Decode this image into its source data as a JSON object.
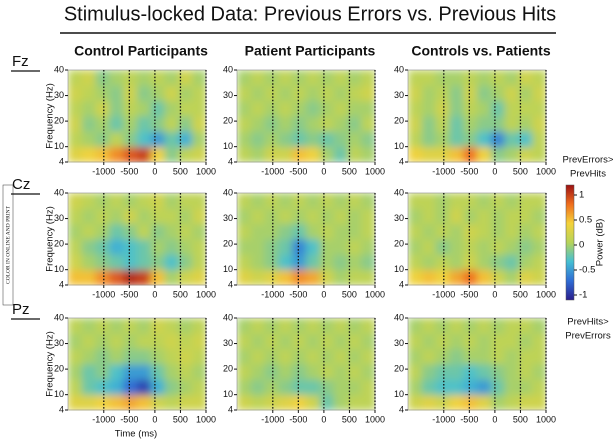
{
  "title": "Stimulus-locked Data: Previous Errors vs. Previous Hits",
  "side_note": "COLOR IN ONLINE AND PRINT",
  "column_titles": [
    "Control Participants",
    "Patient Participants",
    "Controls vs. Patients"
  ],
  "row_labels": [
    "Fz",
    "Cz",
    "Pz"
  ],
  "x_label": "Time (ms)",
  "y_label": "Frequency (Hz)",
  "colorbar": {
    "label": "Power (dB)",
    "top_label": [
      "PrevErrors>",
      "PrevHits"
    ],
    "bottom_label": [
      "PrevHits>",
      "PrevErrors"
    ],
    "lim": [
      -1.1,
      1.2
    ],
    "ticks": [
      1,
      0.5,
      0,
      -0.5,
      -1
    ],
    "colormap": [
      "#2a1e8c",
      "#2f6cd4",
      "#45bfd3",
      "#b6d35a",
      "#f4d23a",
      "#ef6d1d",
      "#9c1113"
    ]
  },
  "chart_data": [
    {
      "type": "heatmap",
      "xlim": [
        -1700,
        1000
      ],
      "ylim": [
        4,
        40
      ],
      "xticks": [
        -1000,
        -500,
        0,
        500,
        1000
      ],
      "yticks": [
        4,
        10,
        20,
        30,
        40
      ],
      "z": [
        [
          0.3,
          0.4,
          0.5,
          0.7,
          0.9,
          1.0,
          0.4,
          -0.1,
          0.1,
          0.2
        ],
        [
          0.1,
          0.0,
          -0.1,
          0.1,
          -0.1,
          -0.3,
          -0.5,
          -0.2,
          -0.4,
          0.0
        ],
        [
          0.2,
          -0.1,
          0.0,
          -0.2,
          0.0,
          -0.2,
          -0.1,
          0.1,
          -0.1,
          0.2
        ],
        [
          0.1,
          0.0,
          0.2,
          -0.1,
          0.1,
          0.0,
          -0.2,
          0.0,
          0.1,
          0.1
        ],
        [
          0.2,
          0.1,
          0.0,
          -0.1,
          0.2,
          -0.1,
          0.0,
          0.2,
          0.0,
          0.1
        ],
        [
          0.1,
          0.2,
          -0.1,
          0.0,
          0.1,
          0.0,
          0.1,
          0.0,
          0.2,
          0.0
        ]
      ]
    },
    {
      "type": "heatmap",
      "xlim": [
        -1700,
        1000
      ],
      "ylim": [
        4,
        40
      ],
      "xticks": [
        -1000,
        -500,
        0,
        500,
        1000
      ],
      "yticks": [
        4,
        10,
        20,
        30,
        40
      ],
      "z": [
        [
          0.1,
          0.0,
          0.2,
          0.2,
          0.5,
          0.4,
          0.0,
          -0.2,
          0.1,
          0.0
        ],
        [
          0.0,
          -0.1,
          0.0,
          -0.1,
          -0.2,
          -0.1,
          -0.2,
          -0.1,
          0.0,
          -0.1
        ],
        [
          0.1,
          0.0,
          -0.1,
          0.0,
          -0.1,
          0.0,
          0.1,
          0.0,
          -0.1,
          0.1
        ],
        [
          0.0,
          0.1,
          0.0,
          0.1,
          0.0,
          -0.1,
          0.0,
          0.1,
          0.0,
          0.0
        ],
        [
          0.1,
          0.0,
          0.1,
          0.0,
          0.1,
          0.0,
          0.1,
          0.0,
          0.1,
          0.2
        ],
        [
          0.0,
          0.1,
          0.0,
          0.1,
          0.0,
          0.1,
          0.0,
          0.1,
          0.0,
          0.1
        ]
      ]
    },
    {
      "type": "heatmap",
      "xlim": [
        -1700,
        1000
      ],
      "ylim": [
        4,
        40
      ],
      "xticks": [
        -1000,
        -500,
        0,
        500,
        1000
      ],
      "yticks": [
        4,
        10,
        20,
        30,
        40
      ],
      "z": [
        [
          0.4,
          0.3,
          0.3,
          0.5,
          0.8,
          0.4,
          -0.1,
          0.0,
          0.2,
          0.1
        ],
        [
          0.1,
          -0.1,
          0.0,
          -0.2,
          -0.1,
          -0.3,
          -0.6,
          -0.2,
          -0.3,
          0.1
        ],
        [
          0.2,
          -0.1,
          0.1,
          -0.2,
          0.0,
          -0.1,
          -0.1,
          0.1,
          0.0,
          0.2
        ],
        [
          0.1,
          0.0,
          0.2,
          -0.1,
          0.1,
          0.0,
          -0.2,
          0.1,
          0.1,
          0.1
        ],
        [
          0.2,
          0.0,
          0.1,
          -0.1,
          0.2,
          -0.1,
          0.0,
          0.2,
          0.0,
          0.2
        ],
        [
          0.1,
          0.1,
          0.0,
          0.0,
          0.1,
          0.0,
          0.1,
          0.0,
          0.2,
          0.1
        ]
      ]
    },
    {
      "type": "heatmap",
      "xlim": [
        -1700,
        1000
      ],
      "ylim": [
        4,
        40
      ],
      "xticks": [
        -1000,
        -500,
        0,
        500,
        1000
      ],
      "yticks": [
        4,
        10,
        20,
        30,
        40
      ],
      "z": [
        [
          0.5,
          0.5,
          0.7,
          0.9,
          1.1,
          1.0,
          0.5,
          0.0,
          0.2,
          0.3
        ],
        [
          0.2,
          0.0,
          -0.1,
          -0.2,
          -0.3,
          -0.2,
          -0.1,
          -0.3,
          -0.1,
          0.1
        ],
        [
          0.1,
          -0.1,
          -0.2,
          -0.4,
          -0.3,
          -0.2,
          0.0,
          -0.1,
          0.0,
          0.1
        ],
        [
          0.0,
          0.1,
          0.0,
          -0.2,
          -0.1,
          0.1,
          -0.1,
          0.0,
          0.1,
          0.0
        ],
        [
          0.1,
          0.0,
          0.1,
          0.0,
          0.2,
          0.0,
          0.1,
          0.1,
          0.0,
          0.2
        ],
        [
          0.2,
          0.1,
          0.0,
          0.1,
          0.0,
          0.1,
          0.2,
          0.0,
          0.1,
          0.1
        ]
      ]
    },
    {
      "type": "heatmap",
      "xlim": [
        -1700,
        1000
      ],
      "ylim": [
        4,
        40
      ],
      "xticks": [
        -1000,
        -500,
        0,
        500,
        1000
      ],
      "yticks": [
        4,
        10,
        20,
        30,
        40
      ],
      "z": [
        [
          0.3,
          0.2,
          0.3,
          0.5,
          0.7,
          0.6,
          0.2,
          0.0,
          0.1,
          0.1
        ],
        [
          0.1,
          0.0,
          -0.1,
          -0.3,
          -0.5,
          -0.2,
          0.0,
          -0.1,
          0.0,
          -0.1
        ],
        [
          0.0,
          0.0,
          -0.1,
          -0.2,
          -0.6,
          -0.3,
          0.0,
          0.0,
          0.1,
          0.0
        ],
        [
          0.1,
          0.0,
          0.0,
          -0.1,
          -0.2,
          0.0,
          0.1,
          0.0,
          0.0,
          0.1
        ],
        [
          0.0,
          0.1,
          0.0,
          0.1,
          0.0,
          0.1,
          0.0,
          0.1,
          0.0,
          0.1
        ],
        [
          0.1,
          0.0,
          0.1,
          0.0,
          0.1,
          0.0,
          0.1,
          0.0,
          0.1,
          0.0
        ]
      ]
    },
    {
      "type": "heatmap",
      "xlim": [
        -1700,
        1000
      ],
      "ylim": [
        4,
        40
      ],
      "xticks": [
        -1000,
        -500,
        0,
        500,
        1000
      ],
      "yticks": [
        4,
        10,
        20,
        30,
        40
      ],
      "z": [
        [
          0.4,
          0.5,
          0.4,
          0.6,
          0.8,
          0.5,
          0.2,
          0.0,
          0.3,
          0.2
        ],
        [
          0.1,
          0.0,
          0.1,
          0.0,
          0.2,
          0.0,
          -0.1,
          -0.2,
          0.0,
          0.1
        ],
        [
          0.0,
          0.1,
          -0.1,
          0.0,
          0.1,
          0.0,
          0.1,
          0.0,
          -0.1,
          0.0
        ],
        [
          0.1,
          0.0,
          0.1,
          0.0,
          0.2,
          0.1,
          0.0,
          0.1,
          0.0,
          0.1
        ],
        [
          0.0,
          0.1,
          0.0,
          0.2,
          0.0,
          0.1,
          0.0,
          0.1,
          0.1,
          0.0
        ],
        [
          0.1,
          0.1,
          0.0,
          0.1,
          0.1,
          0.0,
          0.1,
          0.0,
          0.1,
          0.1
        ]
      ]
    },
    {
      "type": "heatmap",
      "xlim": [
        -1700,
        1000
      ],
      "ylim": [
        4,
        40
      ],
      "xticks": [
        -1000,
        -500,
        0,
        500,
        1000
      ],
      "yticks": [
        4,
        10,
        20,
        30,
        40
      ],
      "z": [
        [
          0.3,
          0.3,
          0.4,
          0.5,
          0.6,
          0.5,
          0.2,
          0.1,
          0.2,
          0.2
        ],
        [
          0.1,
          -0.2,
          -0.3,
          -0.4,
          -0.7,
          -0.9,
          -0.4,
          -0.1,
          0.0,
          0.1
        ],
        [
          0.0,
          -0.2,
          -0.1,
          -0.3,
          -0.5,
          -0.5,
          -0.2,
          0.0,
          0.1,
          0.0
        ],
        [
          0.1,
          0.0,
          -0.1,
          0.0,
          -0.1,
          -0.1,
          0.0,
          0.1,
          0.2,
          0.1
        ],
        [
          0.0,
          0.1,
          0.0,
          0.1,
          0.0,
          0.1,
          0.1,
          0.2,
          0.1,
          0.2
        ],
        [
          0.1,
          0.0,
          0.1,
          0.0,
          0.1,
          0.0,
          0.2,
          0.1,
          0.0,
          0.1
        ]
      ]
    },
    {
      "type": "heatmap",
      "xlim": [
        -1700,
        1000
      ],
      "ylim": [
        4,
        40
      ],
      "xticks": [
        -1000,
        -500,
        0,
        500,
        1000
      ],
      "yticks": [
        4,
        10,
        20,
        30,
        40
      ],
      "z": [
        [
          0.2,
          0.1,
          0.2,
          0.3,
          0.4,
          0.2,
          -0.2,
          0.0,
          0.1,
          0.1
        ],
        [
          0.0,
          -0.1,
          0.0,
          -0.1,
          -0.2,
          -0.2,
          -0.1,
          0.0,
          0.0,
          0.1
        ],
        [
          0.1,
          0.0,
          -0.1,
          0.0,
          -0.1,
          0.0,
          0.1,
          0.0,
          0.1,
          0.0
        ],
        [
          0.0,
          0.1,
          0.0,
          0.1,
          0.0,
          0.1,
          0.0,
          0.1,
          0.0,
          0.1
        ],
        [
          0.1,
          0.0,
          0.1,
          0.0,
          0.1,
          0.0,
          0.1,
          0.0,
          0.1,
          0.0
        ],
        [
          0.0,
          0.1,
          0.0,
          0.1,
          0.0,
          0.1,
          0.0,
          0.1,
          0.0,
          0.1
        ]
      ]
    },
    {
      "type": "heatmap",
      "xlim": [
        -1700,
        1000
      ],
      "ylim": [
        4,
        40
      ],
      "xticks": [
        -1000,
        -500,
        0,
        500,
        1000
      ],
      "yticks": [
        4,
        10,
        20,
        30,
        40
      ],
      "z": [
        [
          0.2,
          0.3,
          0.2,
          0.4,
          0.5,
          0.3,
          0.0,
          0.1,
          0.2,
          0.2
        ],
        [
          0.0,
          -0.2,
          -0.3,
          -0.3,
          -0.4,
          -0.5,
          -0.2,
          0.0,
          0.0,
          0.1
        ],
        [
          0.1,
          -0.1,
          -0.2,
          -0.2,
          -0.3,
          -0.2,
          -0.1,
          0.0,
          0.1,
          0.0
        ],
        [
          0.0,
          0.1,
          0.0,
          -0.1,
          0.0,
          0.0,
          0.1,
          0.0,
          0.1,
          0.1
        ],
        [
          0.1,
          0.0,
          0.1,
          0.0,
          0.1,
          0.0,
          0.1,
          0.1,
          0.0,
          0.1
        ],
        [
          0.0,
          0.1,
          0.0,
          0.1,
          0.0,
          0.1,
          0.0,
          0.1,
          0.1,
          0.0
        ]
      ]
    }
  ]
}
